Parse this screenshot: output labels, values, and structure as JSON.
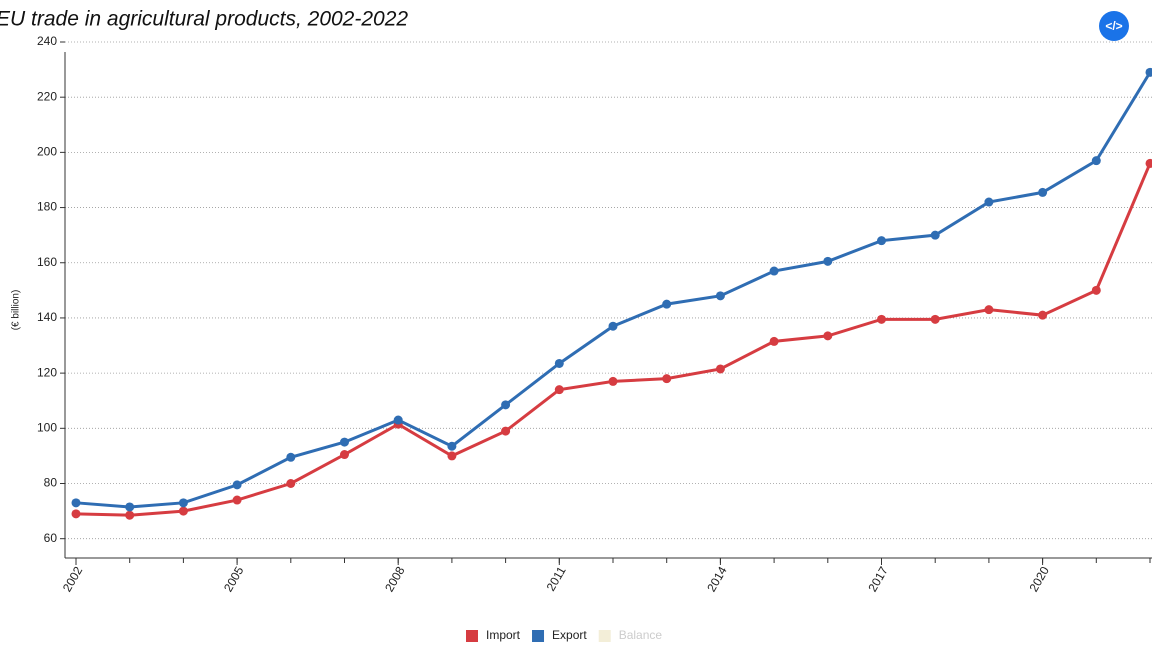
{
  "chart_data": {
    "type": "line",
    "title": "EU trade in agricultural products, 2002-2022",
    "y_label": "(€ billion)",
    "embed_button": "</>",
    "x": [
      2002,
      2003,
      2004,
      2005,
      2006,
      2007,
      2008,
      2009,
      2010,
      2011,
      2012,
      2013,
      2014,
      2015,
      2016,
      2017,
      2018,
      2019,
      2020,
      2021,
      2022
    ],
    "series": [
      {
        "name": "Import",
        "color": "#d63c41",
        "values": [
          69,
          68.5,
          70,
          74,
          80,
          90.5,
          101.5,
          90,
          99,
          114,
          117,
          118,
          121.5,
          131.5,
          133.5,
          139.5,
          139.5,
          143,
          141,
          150,
          196
        ]
      },
      {
        "name": "Export",
        "color": "#2f6db3",
        "values": [
          73,
          71.5,
          73,
          79.5,
          89.5,
          95,
          103,
          93.5,
          108.5,
          123.5,
          137,
          145,
          148,
          157,
          160.5,
          168,
          170,
          182,
          185.5,
          197,
          229
        ]
      }
    ],
    "inactive_legend": {
      "name": "Balance",
      "color": "#f3eed8"
    },
    "xlim": [
      2001.8,
      2022
    ],
    "xticks": [
      2002,
      2005,
      2008,
      2011,
      2014,
      2017,
      2020
    ],
    "ylim": [
      53,
      240
    ],
    "yticks": [
      60,
      80,
      100,
      120,
      140,
      160,
      180,
      200,
      220,
      240
    ],
    "grid": true
  }
}
